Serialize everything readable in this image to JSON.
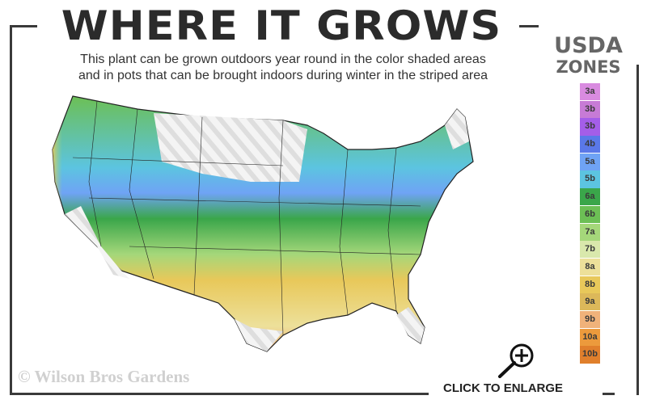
{
  "title": "WHERE IT GROWS",
  "subtitle_line1": "This plant can be grown outdoors year round in the color shaded areas",
  "subtitle_line2": "and in pots that can be brought indoors during winter in the striped area",
  "legend": {
    "title_line1": "USDA",
    "title_line2": "ZONES",
    "zones": [
      {
        "label": "3a",
        "color": "#d98be0"
      },
      {
        "label": "3b",
        "color": "#c77bd6"
      },
      {
        "label": "3b",
        "color": "#a45ee8"
      },
      {
        "label": "4b",
        "color": "#5a78e8"
      },
      {
        "label": "5a",
        "color": "#6fa3f5"
      },
      {
        "label": "5b",
        "color": "#5cc4e0"
      },
      {
        "label": "6a",
        "color": "#3aa64a"
      },
      {
        "label": "6b",
        "color": "#6cbf55"
      },
      {
        "label": "7a",
        "color": "#a5d77a"
      },
      {
        "label": "7b",
        "color": "#d9e8ac"
      },
      {
        "label": "8a",
        "color": "#ede09a"
      },
      {
        "label": "8b",
        "color": "#e8c85a"
      },
      {
        "label": "9a",
        "color": "#dcb85a"
      },
      {
        "label": "9b",
        "color": "#f0b27a"
      },
      {
        "label": "10a",
        "color": "#ec9a3c"
      },
      {
        "label": "10b",
        "color": "#e07f2c"
      }
    ]
  },
  "copyright": "© Wilson Bros Gardens",
  "enlarge": {
    "label": "CLICK TO ENLARGE",
    "icon": "zoom-in-icon"
  }
}
